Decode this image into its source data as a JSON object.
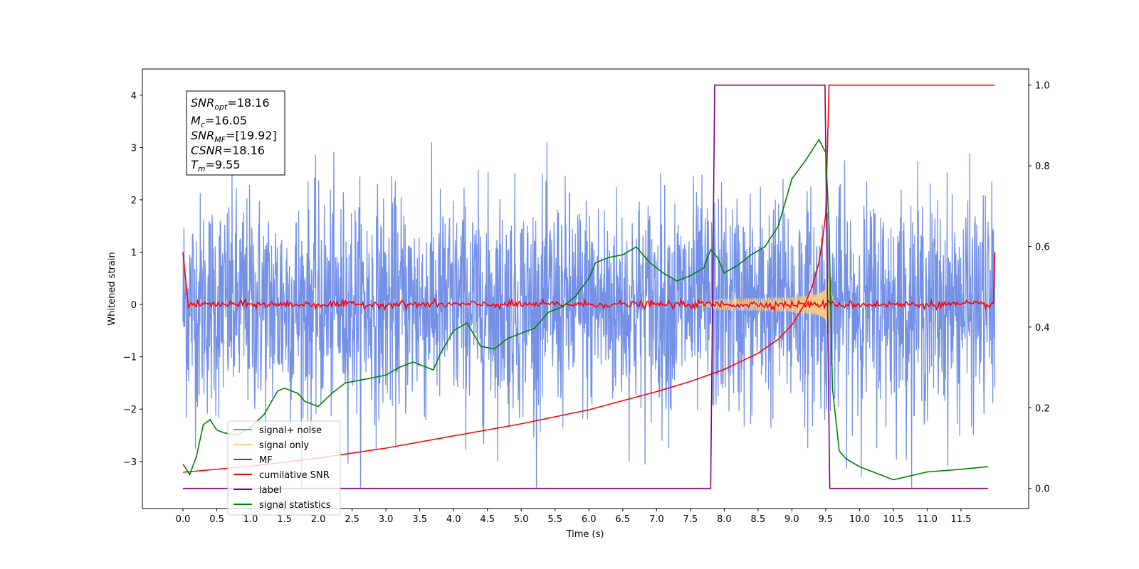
{
  "chart_data": {
    "type": "line",
    "xlabel": "Time (s)",
    "ylabel": "Whitened strain",
    "xlim": [
      -0.6,
      12.5
    ],
    "ylim": [
      -3.9,
      4.5
    ],
    "y2lim": [
      -0.05,
      1.04
    ],
    "x_ticks": [
      "0.0",
      "0.5",
      "1.0",
      "1.5",
      "2.0",
      "2.5",
      "3.0",
      "3.5",
      "4.0",
      "4.5",
      "5.0",
      "5.5",
      "6.0",
      "6.5",
      "7.0",
      "7.5",
      "8.0",
      "8.5",
      "9.0",
      "9.5",
      "10.0",
      "10.5",
      "11.0",
      "11.5"
    ],
    "y_ticks": [
      "−3",
      "−2",
      "−1",
      "0",
      "1",
      "2",
      "3",
      "4"
    ],
    "y2_ticks": [
      "0.0",
      "0.2",
      "0.4",
      "0.6",
      "0.8",
      "1.0"
    ],
    "legend_position": "lower-left",
    "info_box": {
      "snr_opt_label": "SNR",
      "snr_opt_sub": "opt",
      "snr_opt_value": "=18.16",
      "mc_label": "M",
      "mc_sub": "c",
      "mc_value": "=16.05",
      "snr_mf_label": "SNR",
      "snr_mf_sub": "MF",
      "snr_mf_value": "=[19.92]",
      "csnr_label": "CSNR",
      "csnr_value": "=18.16",
      "tm_label": "T",
      "tm_sub": "m",
      "tm_value": "=9.55"
    },
    "series": [
      {
        "name": "signal+ noise",
        "color": "#6d8be6",
        "axis": "left",
        "noise_sigma": 1.0,
        "x_range": [
          0.0,
          12.0
        ]
      },
      {
        "name": "signal only",
        "color": "#f5c987",
        "axis": "left",
        "merger_time": 9.55,
        "peak_amplitude": 1.0
      },
      {
        "name": "MF",
        "color": "#ff0000",
        "axis": "left",
        "x_range": [
          0.0,
          12.0
        ],
        "baseline": 0.0
      },
      {
        "name": "cumilative SNR",
        "color": "#ff0000",
        "axis": "right",
        "x": [
          0.0,
          1.0,
          2.0,
          3.0,
          4.0,
          5.0,
          6.0,
          7.0,
          7.5,
          8.0,
          8.5,
          8.8,
          9.0,
          9.2,
          9.3,
          9.4,
          9.45,
          9.5,
          9.55,
          9.6,
          12.0
        ],
        "y": [
          0.04,
          0.055,
          0.075,
          0.1,
          0.13,
          0.16,
          0.195,
          0.24,
          0.265,
          0.295,
          0.335,
          0.37,
          0.405,
          0.46,
          0.5,
          0.56,
          0.61,
          0.68,
          1.0,
          1.0,
          1.0
        ]
      },
      {
        "name": "label",
        "color": "#800080",
        "axis": "right",
        "x": [
          0.0,
          7.8,
          7.86,
          9.49,
          9.56,
          11.9
        ],
        "y": [
          0.0,
          0.0,
          1.0,
          1.0,
          0.0,
          0.0
        ]
      },
      {
        "name": "signal statistics",
        "color": "#008000",
        "axis": "left",
        "x": [
          0.0,
          0.1,
          0.2,
          0.3,
          0.4,
          0.5,
          0.6,
          0.8,
          1.0,
          1.2,
          1.4,
          1.5,
          1.7,
          1.8,
          1.9,
          2.0,
          2.2,
          2.4,
          2.6,
          2.8,
          3.0,
          3.2,
          3.4,
          3.5,
          3.7,
          3.8,
          4.0,
          4.2,
          4.4,
          4.6,
          4.8,
          5.0,
          5.2,
          5.4,
          5.6,
          5.8,
          6.0,
          6.1,
          6.3,
          6.5,
          6.7,
          6.9,
          7.1,
          7.3,
          7.5,
          7.7,
          7.8,
          7.9,
          8.0,
          8.2,
          8.4,
          8.6,
          8.8,
          9.0,
          9.2,
          9.4,
          9.5,
          9.55,
          9.6,
          9.7,
          9.8,
          10.0,
          10.2,
          10.5,
          11.0,
          11.5,
          11.9
        ],
        "y": [
          -3.05,
          -3.25,
          -2.9,
          -2.3,
          -2.2,
          -2.4,
          -2.45,
          -2.5,
          -2.35,
          -2.1,
          -1.65,
          -1.6,
          -1.7,
          -1.85,
          -1.9,
          -1.95,
          -1.7,
          -1.5,
          -1.45,
          -1.4,
          -1.35,
          -1.2,
          -1.1,
          -1.15,
          -1.25,
          -0.95,
          -0.5,
          -0.35,
          -0.8,
          -0.85,
          -0.65,
          -0.55,
          -0.45,
          -0.15,
          -0.05,
          0.15,
          0.5,
          0.8,
          0.9,
          0.95,
          1.1,
          0.8,
          0.6,
          0.45,
          0.55,
          0.7,
          1.05,
          0.9,
          0.6,
          0.75,
          0.95,
          1.1,
          1.5,
          2.4,
          2.75,
          3.15,
          2.9,
          1.5,
          -1.6,
          -2.8,
          -2.95,
          -3.1,
          -3.2,
          -3.35,
          -3.2,
          -3.15,
          -3.1
        ]
      }
    ]
  }
}
